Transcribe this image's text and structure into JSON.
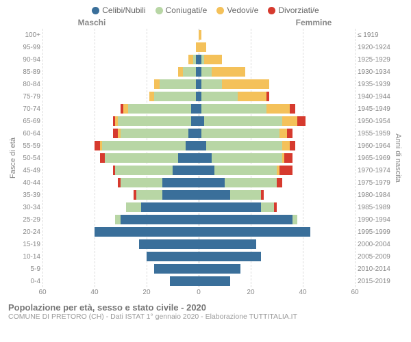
{
  "legend": [
    {
      "label": "Celibi/Nubili",
      "color": "#3a6f9a"
    },
    {
      "label": "Coniugati/e",
      "color": "#b8d6a5"
    },
    {
      "label": "Vedovi/e",
      "color": "#f4c15a"
    },
    {
      "label": "Divorziati/e",
      "color": "#d63a2e"
    }
  ],
  "gender": {
    "male": "Maschi",
    "female": "Femmine"
  },
  "axis": {
    "left_label": "Fasce di età",
    "right_label": "Anni di nascita",
    "xmax": 60,
    "xticks": [
      60,
      40,
      20,
      0,
      20,
      40,
      60
    ]
  },
  "footer": {
    "title": "Popolazione per età, sesso e stato civile - 2020",
    "subtitle": "COMUNE DI PRETORO (CH) - Dati ISTAT 1° gennaio 2020 - Elaborazione TUTTITALIA.IT"
  },
  "rows": [
    {
      "age": "100+",
      "birth": "≤ 1919",
      "m": [
        0,
        0,
        0,
        0
      ],
      "f": [
        0,
        0,
        1,
        0
      ]
    },
    {
      "age": "95-99",
      "birth": "1920-1924",
      "m": [
        0,
        0,
        1,
        0
      ],
      "f": [
        0,
        0,
        3,
        0
      ]
    },
    {
      "age": "90-94",
      "birth": "1925-1929",
      "m": [
        1,
        1,
        2,
        0
      ],
      "f": [
        1,
        1,
        7,
        0
      ]
    },
    {
      "age": "85-89",
      "birth": "1930-1934",
      "m": [
        1,
        5,
        2,
        0
      ],
      "f": [
        1,
        4,
        13,
        0
      ]
    },
    {
      "age": "80-84",
      "birth": "1935-1939",
      "m": [
        1,
        14,
        2,
        0
      ],
      "f": [
        1,
        8,
        18,
        0
      ]
    },
    {
      "age": "75-79",
      "birth": "1940-1944",
      "m": [
        1,
        16,
        2,
        0
      ],
      "f": [
        1,
        14,
        11,
        1
      ]
    },
    {
      "age": "70-74",
      "birth": "1945-1949",
      "m": [
        3,
        24,
        2,
        1
      ],
      "f": [
        1,
        25,
        9,
        2
      ]
    },
    {
      "age": "65-69",
      "birth": "1950-1954",
      "m": [
        3,
        28,
        1,
        1
      ],
      "f": [
        2,
        30,
        6,
        3
      ]
    },
    {
      "age": "60-64",
      "birth": "1955-1959",
      "m": [
        4,
        26,
        1,
        2
      ],
      "f": [
        1,
        30,
        3,
        2
      ]
    },
    {
      "age": "55-59",
      "birth": "1960-1964",
      "m": [
        5,
        32,
        1,
        2
      ],
      "f": [
        3,
        29,
        3,
        2
      ]
    },
    {
      "age": "50-54",
      "birth": "1965-1969",
      "m": [
        8,
        28,
        0,
        2
      ],
      "f": [
        5,
        27,
        1,
        3
      ]
    },
    {
      "age": "45-49",
      "birth": "1970-1974",
      "m": [
        10,
        22,
        0,
        1
      ],
      "f": [
        6,
        24,
        1,
        5
      ]
    },
    {
      "age": "40-44",
      "birth": "1975-1979",
      "m": [
        14,
        16,
        0,
        1
      ],
      "f": [
        10,
        20,
        0,
        2
      ]
    },
    {
      "age": "35-39",
      "birth": "1980-1984",
      "m": [
        14,
        10,
        0,
        1
      ],
      "f": [
        12,
        12,
        0,
        1
      ]
    },
    {
      "age": "30-34",
      "birth": "1985-1989",
      "m": [
        22,
        6,
        0,
        0
      ],
      "f": [
        24,
        5,
        0,
        1
      ]
    },
    {
      "age": "25-29",
      "birth": "1990-1994",
      "m": [
        30,
        2,
        0,
        0
      ],
      "f": [
        36,
        2,
        0,
        0
      ]
    },
    {
      "age": "20-24",
      "birth": "1995-1999",
      "m": [
        40,
        0,
        0,
        0
      ],
      "f": [
        43,
        0,
        0,
        0
      ]
    },
    {
      "age": "15-19",
      "birth": "2000-2004",
      "m": [
        23,
        0,
        0,
        0
      ],
      "f": [
        22,
        0,
        0,
        0
      ]
    },
    {
      "age": "10-14",
      "birth": "2005-2009",
      "m": [
        20,
        0,
        0,
        0
      ],
      "f": [
        24,
        0,
        0,
        0
      ]
    },
    {
      "age": "5-9",
      "birth": "2010-2014",
      "m": [
        17,
        0,
        0,
        0
      ],
      "f": [
        16,
        0,
        0,
        0
      ]
    },
    {
      "age": "0-4",
      "birth": "2015-2019",
      "m": [
        11,
        0,
        0,
        0
      ],
      "f": [
        12,
        0,
        0,
        0
      ]
    }
  ]
}
